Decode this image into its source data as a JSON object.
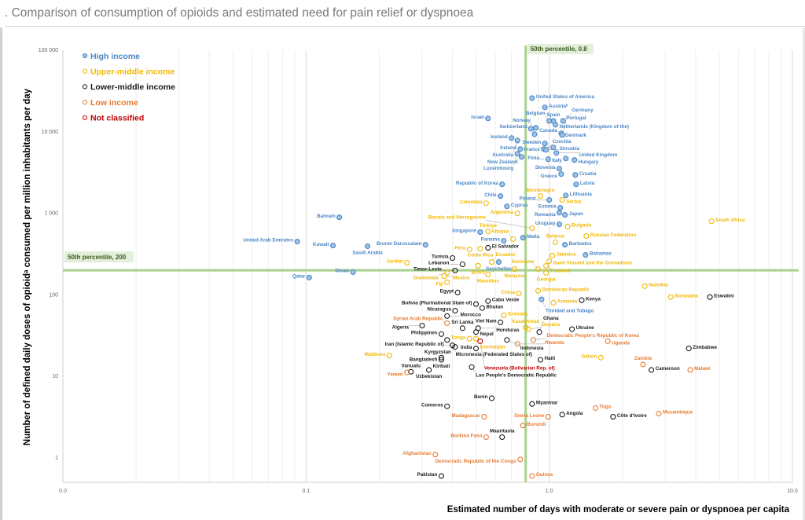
{
  "header": {
    "title": ". Comparison of consumption of opioids and estimated need for pain relief or dyspnoea"
  },
  "chart_data": {
    "type": "scatter",
    "title": ". Comparison of consumption of opioids and estimated need for pain relief or dyspnoea",
    "xlabel": "Estimated number of days with moderate or severe pain or dyspnoea per capita",
    "ylabel": "Number of defined daily doses of opioidᵃ consumed per million inhabitants per day",
    "xscale": "log",
    "yscale": "log",
    "xlim": [
      0.01,
      10
    ],
    "ylim": [
      0.5,
      100000
    ],
    "xticks": [
      {
        "v": 0.01,
        "label": "0.0"
      },
      {
        "v": 0.1,
        "label": "0.1"
      },
      {
        "v": 1,
        "label": "1.0"
      },
      {
        "v": 10,
        "label": "10.0"
      }
    ],
    "yticks": [
      {
        "v": 100000,
        "label": "100 000"
      },
      {
        "v": 10000,
        "label": "10 000"
      },
      {
        "v": 1000,
        "label": "1 000"
      },
      {
        "v": 100,
        "label": "100"
      },
      {
        "v": 10,
        "label": "10"
      },
      {
        "v": 1,
        "label": "1"
      }
    ],
    "grid": "vertical minor",
    "legend_placement": "top-left",
    "reference_lines": [
      {
        "axis": "x",
        "value": 0.8,
        "label": "50th percentile, 0.8"
      },
      {
        "axis": "y",
        "value": 200,
        "label": "50th percentile, 200"
      }
    ],
    "reference_line_color": "#a9d18e",
    "groups": [
      {
        "id": "H",
        "name": "High income",
        "color": "#4a86c5",
        "fill": "#9dc3e6"
      },
      {
        "id": "U",
        "name": "Upper-middle income",
        "color": "#f2b800",
        "fill": "none"
      },
      {
        "id": "L",
        "name": "Lower-middle income",
        "color": "#1a1a1a",
        "fill": "none"
      },
      {
        "id": "W",
        "name": "Low income",
        "color": "#e67a32",
        "fill": "none"
      },
      {
        "id": "N",
        "name": "Not classified",
        "color": "#c00000",
        "fill": "none"
      }
    ],
    "points": [
      [
        "United States of America",
        "H",
        0.85,
        25900
      ],
      [
        "Austriaᵇ",
        "H",
        0.96,
        19900
      ],
      [
        "Israel",
        "H",
        0.56,
        14600
      ],
      [
        "Spain",
        "H",
        1.04,
        13600
      ],
      [
        "Belgium",
        "H",
        1.0,
        13600
      ],
      [
        "Germany",
        "H",
        1.14,
        13600
      ],
      [
        "Netherlands (Kingdom of the)",
        "H",
        1.06,
        12200
      ],
      [
        "Switzerland",
        "H",
        0.88,
        11200
      ],
      [
        "Canada",
        "H",
        0.84,
        10900
      ],
      [
        "Norway",
        "H",
        0.87,
        9350
      ],
      [
        "Denmark",
        "H",
        1.12,
        9570
      ],
      [
        "Portugal",
        "H",
        1.13,
        9150
      ],
      [
        "Iceland",
        "H",
        0.7,
        8380
      ],
      [
        "Australia",
        "H",
        0.74,
        7830
      ],
      [
        "Sweden",
        "H",
        0.96,
        7170
      ],
      [
        "Ireland",
        "H",
        0.76,
        6140
      ],
      [
        "Czechia",
        "H",
        0.95,
        6140
      ],
      [
        "Slovakia",
        "H",
        0.97,
        6010
      ],
      [
        "France",
        "H",
        1.04,
        6420
      ],
      [
        "United Kingdom",
        "H",
        1.07,
        5500
      ],
      [
        "Luxembourg",
        "H",
        0.74,
        5380
      ],
      [
        "New Zealand",
        "H",
        0.77,
        4920
      ],
      [
        "Finla…",
        "H",
        0.99,
        4610
      ],
      [
        "Italy",
        "H",
        1.17,
        4710
      ],
      [
        "Hungary",
        "H",
        1.27,
        4510
      ],
      [
        "Slovenia",
        "H",
        1.1,
        3530
      ],
      [
        "Greece",
        "H",
        1.12,
        3030
      ],
      [
        "Croatia",
        "H",
        1.28,
        2960
      ],
      [
        "Republic of Korea",
        "H",
        0.64,
        2270
      ],
      [
        "Latvia",
        "H",
        1.29,
        2270
      ],
      [
        "Lithuania",
        "H",
        1.17,
        1660
      ],
      [
        "Chile",
        "H",
        0.63,
        1630
      ],
      [
        "Poland",
        "H",
        1.0,
        1460
      ],
      [
        "Cyprus",
        "H",
        0.67,
        1220
      ],
      [
        "Estonia",
        "H",
        1.11,
        1170
      ],
      [
        "Romania",
        "H",
        1.1,
        1020
      ],
      [
        "Japan",
        "H",
        1.16,
        957
      ],
      [
        "Bahrain",
        "H",
        0.137,
        895
      ],
      [
        "Uruguay",
        "H",
        1.1,
        733
      ],
      [
        "Singapore",
        "H",
        0.52,
        588
      ],
      [
        "Malta",
        "H",
        0.78,
        503
      ],
      [
        "Panama",
        "H",
        0.65,
        461
      ],
      [
        "Barbados",
        "H",
        1.16,
        412
      ],
      [
        "United Arab Emirates",
        "H",
        0.092,
        451
      ],
      [
        "Kuwait",
        "H",
        0.129,
        403
      ],
      [
        "Saudi Arabia",
        "H",
        0.179,
        395
      ],
      [
        "Brunei Darussalam",
        "H",
        0.31,
        412
      ],
      [
        "Bahamas",
        "H",
        1.41,
        309
      ],
      [
        "Seychelles",
        "H",
        0.62,
        253
      ],
      [
        "Oman",
        "H",
        0.156,
        190
      ],
      [
        "Qatar",
        "H",
        0.103,
        163
      ],
      [
        "Trinidad and Tobago",
        "H",
        0.93,
        88
      ],
      [
        "Montenegro",
        "U",
        0.92,
        1630
      ],
      [
        "Serbia",
        "U",
        1.13,
        1460
      ],
      [
        "Colombia",
        "U",
        0.55,
        1330
      ],
      [
        "Argentina",
        "U",
        0.74,
        1000
      ],
      [
        "Bosnia and Herzegovina",
        "U",
        0.85,
        657
      ],
      [
        "Bulgaria",
        "U",
        1.19,
        687
      ],
      [
        "Türkiye",
        "U",
        0.56,
        601
      ],
      [
        "Russian Federation",
        "U",
        1.42,
        526
      ],
      [
        "Albania",
        "U",
        0.71,
        482
      ],
      [
        "Belarus",
        "U",
        1.06,
        441
      ],
      [
        "Costa Rica",
        "U",
        0.52,
        369
      ],
      [
        "Peru",
        "U",
        0.47,
        361
      ],
      [
        "Jamaica",
        "U",
        1.03,
        303
      ],
      [
        "Saint Vincent and the Grenadines",
        "U",
        1.0,
        259
      ],
      [
        "Ecuador",
        "U",
        0.58,
        253
      ],
      [
        "Brazil",
        "U",
        0.51,
        227
      ],
      [
        "Jordan",
        "U",
        0.26,
        248
      ],
      [
        "Suriname",
        "U",
        0.9,
        207
      ],
      [
        "Thailand",
        "U",
        0.97,
        227
      ],
      [
        "Malaysia",
        "U",
        0.72,
        207
      ],
      [
        "Georgia",
        "U",
        0.97,
        186
      ],
      [
        "Mauritius",
        "U",
        0.56,
        178
      ],
      [
        "Guatemala",
        "U",
        0.38,
        186
      ],
      [
        "Mexico",
        "U",
        0.37,
        170
      ],
      [
        "Fiji",
        "U",
        0.38,
        143
      ],
      [
        "Namibia",
        "U",
        2.47,
        128
      ],
      [
        "South Africa",
        "U",
        4.65,
        801
      ],
      [
        "Botswana",
        "U",
        3.16,
        94
      ],
      [
        "China",
        "U",
        0.75,
        104
      ],
      [
        "Dominican Republic",
        "U",
        0.9,
        112
      ],
      [
        "Armenia",
        "U",
        1.04,
        80
      ],
      [
        "Grenada",
        "U",
        0.65,
        56
      ],
      [
        "Kazakhstan",
        "U",
        0.8,
        40
      ],
      [
        "Guyana",
        "U",
        0.82,
        38
      ],
      [
        "Tonga",
        "U",
        0.47,
        29
      ],
      [
        "Azerbaijan",
        "U",
        0.5,
        29
      ],
      [
        "Maldives",
        "U",
        0.22,
        18
      ],
      [
        "Gabon",
        "U",
        1.63,
        17
      ],
      [
        "El Salvador",
        "L",
        0.56,
        378
      ],
      [
        "Tunisia",
        "L",
        0.4,
        283
      ],
      [
        "Lebanon",
        "L",
        0.44,
        237
      ],
      [
        "Timor-Leste",
        "L",
        0.41,
        199
      ],
      [
        "Egypt",
        "L",
        0.42,
        107
      ],
      [
        "Kenya",
        "L",
        1.36,
        86
      ],
      [
        "Bolivia (Plurinational State of)",
        "L",
        0.5,
        77
      ],
      [
        "Cabo Verde",
        "L",
        0.56,
        84
      ],
      [
        "Bhutan",
        "L",
        0.53,
        69
      ],
      [
        "Nicaragua",
        "L",
        0.41,
        64
      ],
      [
        "Morocco",
        "L",
        0.38,
        55
      ],
      [
        "Viet Nam",
        "L",
        0.63,
        46
      ],
      [
        "Algeria",
        "L",
        0.3,
        42
      ],
      [
        "Sri Lanka",
        "L",
        0.44,
        39
      ],
      [
        "Honduras",
        "L",
        0.51,
        39
      ],
      [
        "Ukraine",
        "L",
        1.24,
        38
      ],
      [
        "Nepal",
        "L",
        0.5,
        35
      ],
      [
        "Philippines",
        "L",
        0.36,
        33
      ],
      [
        "Ghana",
        "L",
        0.91,
        35
      ],
      [
        "Indonesia",
        "L",
        0.67,
        28
      ],
      [
        "Micronesia (Federated States of)",
        "L",
        0.38,
        28
      ],
      [
        "Iran (Islamic Republic of)",
        "L",
        0.4,
        24
      ],
      [
        "Kyrgyzstan",
        "L",
        0.41,
        23
      ],
      [
        "India",
        "L",
        0.5,
        22
      ],
      [
        "Bangladesh",
        "L",
        0.36,
        17
      ],
      [
        "Kiribati",
        "L",
        0.36,
        16
      ],
      [
        "Haiti",
        "L",
        0.92,
        16
      ],
      [
        "Lao People's Democratic Republic",
        "L",
        0.48,
        13
      ],
      [
        "Vanuatu",
        "L",
        0.27,
        11.4
      ],
      [
        "Uzbekistan",
        "L",
        0.32,
        12
      ],
      [
        "Eswatini",
        "L",
        4.58,
        94
      ],
      [
        "Zimbabwe",
        "L",
        3.75,
        22
      ],
      [
        "Cameroon",
        "L",
        2.63,
        12
      ],
      [
        "Benin",
        "L",
        0.58,
        5.4
      ],
      [
        "Comoros",
        "L",
        0.38,
        4.3
      ],
      [
        "Myanmar",
        "L",
        0.85,
        4.6
      ],
      [
        "Angola",
        "L",
        1.13,
        3.4
      ],
      [
        "Côte d'Ivoire",
        "L",
        1.83,
        3.2
      ],
      [
        "Mauritania",
        "L",
        0.64,
        1.8
      ],
      [
        "Pakistan",
        "L",
        0.36,
        0.6
      ],
      [
        "Syrian Arab Republic",
        "W",
        0.38,
        45
      ],
      [
        "Democratic People's Republic of Korea",
        "W",
        0.86,
        28
      ],
      [
        "Rwanda",
        "W",
        0.74,
        25
      ],
      [
        "Uganda",
        "W",
        1.74,
        27
      ],
      [
        "Yemen",
        "W",
        0.26,
        11.2
      ],
      [
        "Zambia",
        "W",
        2.43,
        14
      ],
      [
        "Malawi",
        "W",
        3.8,
        12
      ],
      [
        "Togo",
        "W",
        1.55,
        4.1
      ],
      [
        "Sierra Leone",
        "W",
        0.99,
        3.2
      ],
      [
        "Mozambique",
        "W",
        2.82,
        3.5
      ],
      [
        "Madagascar",
        "W",
        0.54,
        3.2
      ],
      [
        "Burundi",
        "W",
        0.78,
        2.5
      ],
      [
        "Burkina Faso",
        "W",
        0.55,
        1.8
      ],
      [
        "Afghanistan",
        "W",
        0.34,
        1.1
      ],
      [
        "Democratic Republic of the Congo",
        "W",
        0.76,
        0.96
      ],
      [
        "Guinea",
        "W",
        0.85,
        0.6
      ],
      [
        "Venezuela (Bolivarian Rep. of)",
        "N",
        0.52,
        27
      ]
    ]
  }
}
